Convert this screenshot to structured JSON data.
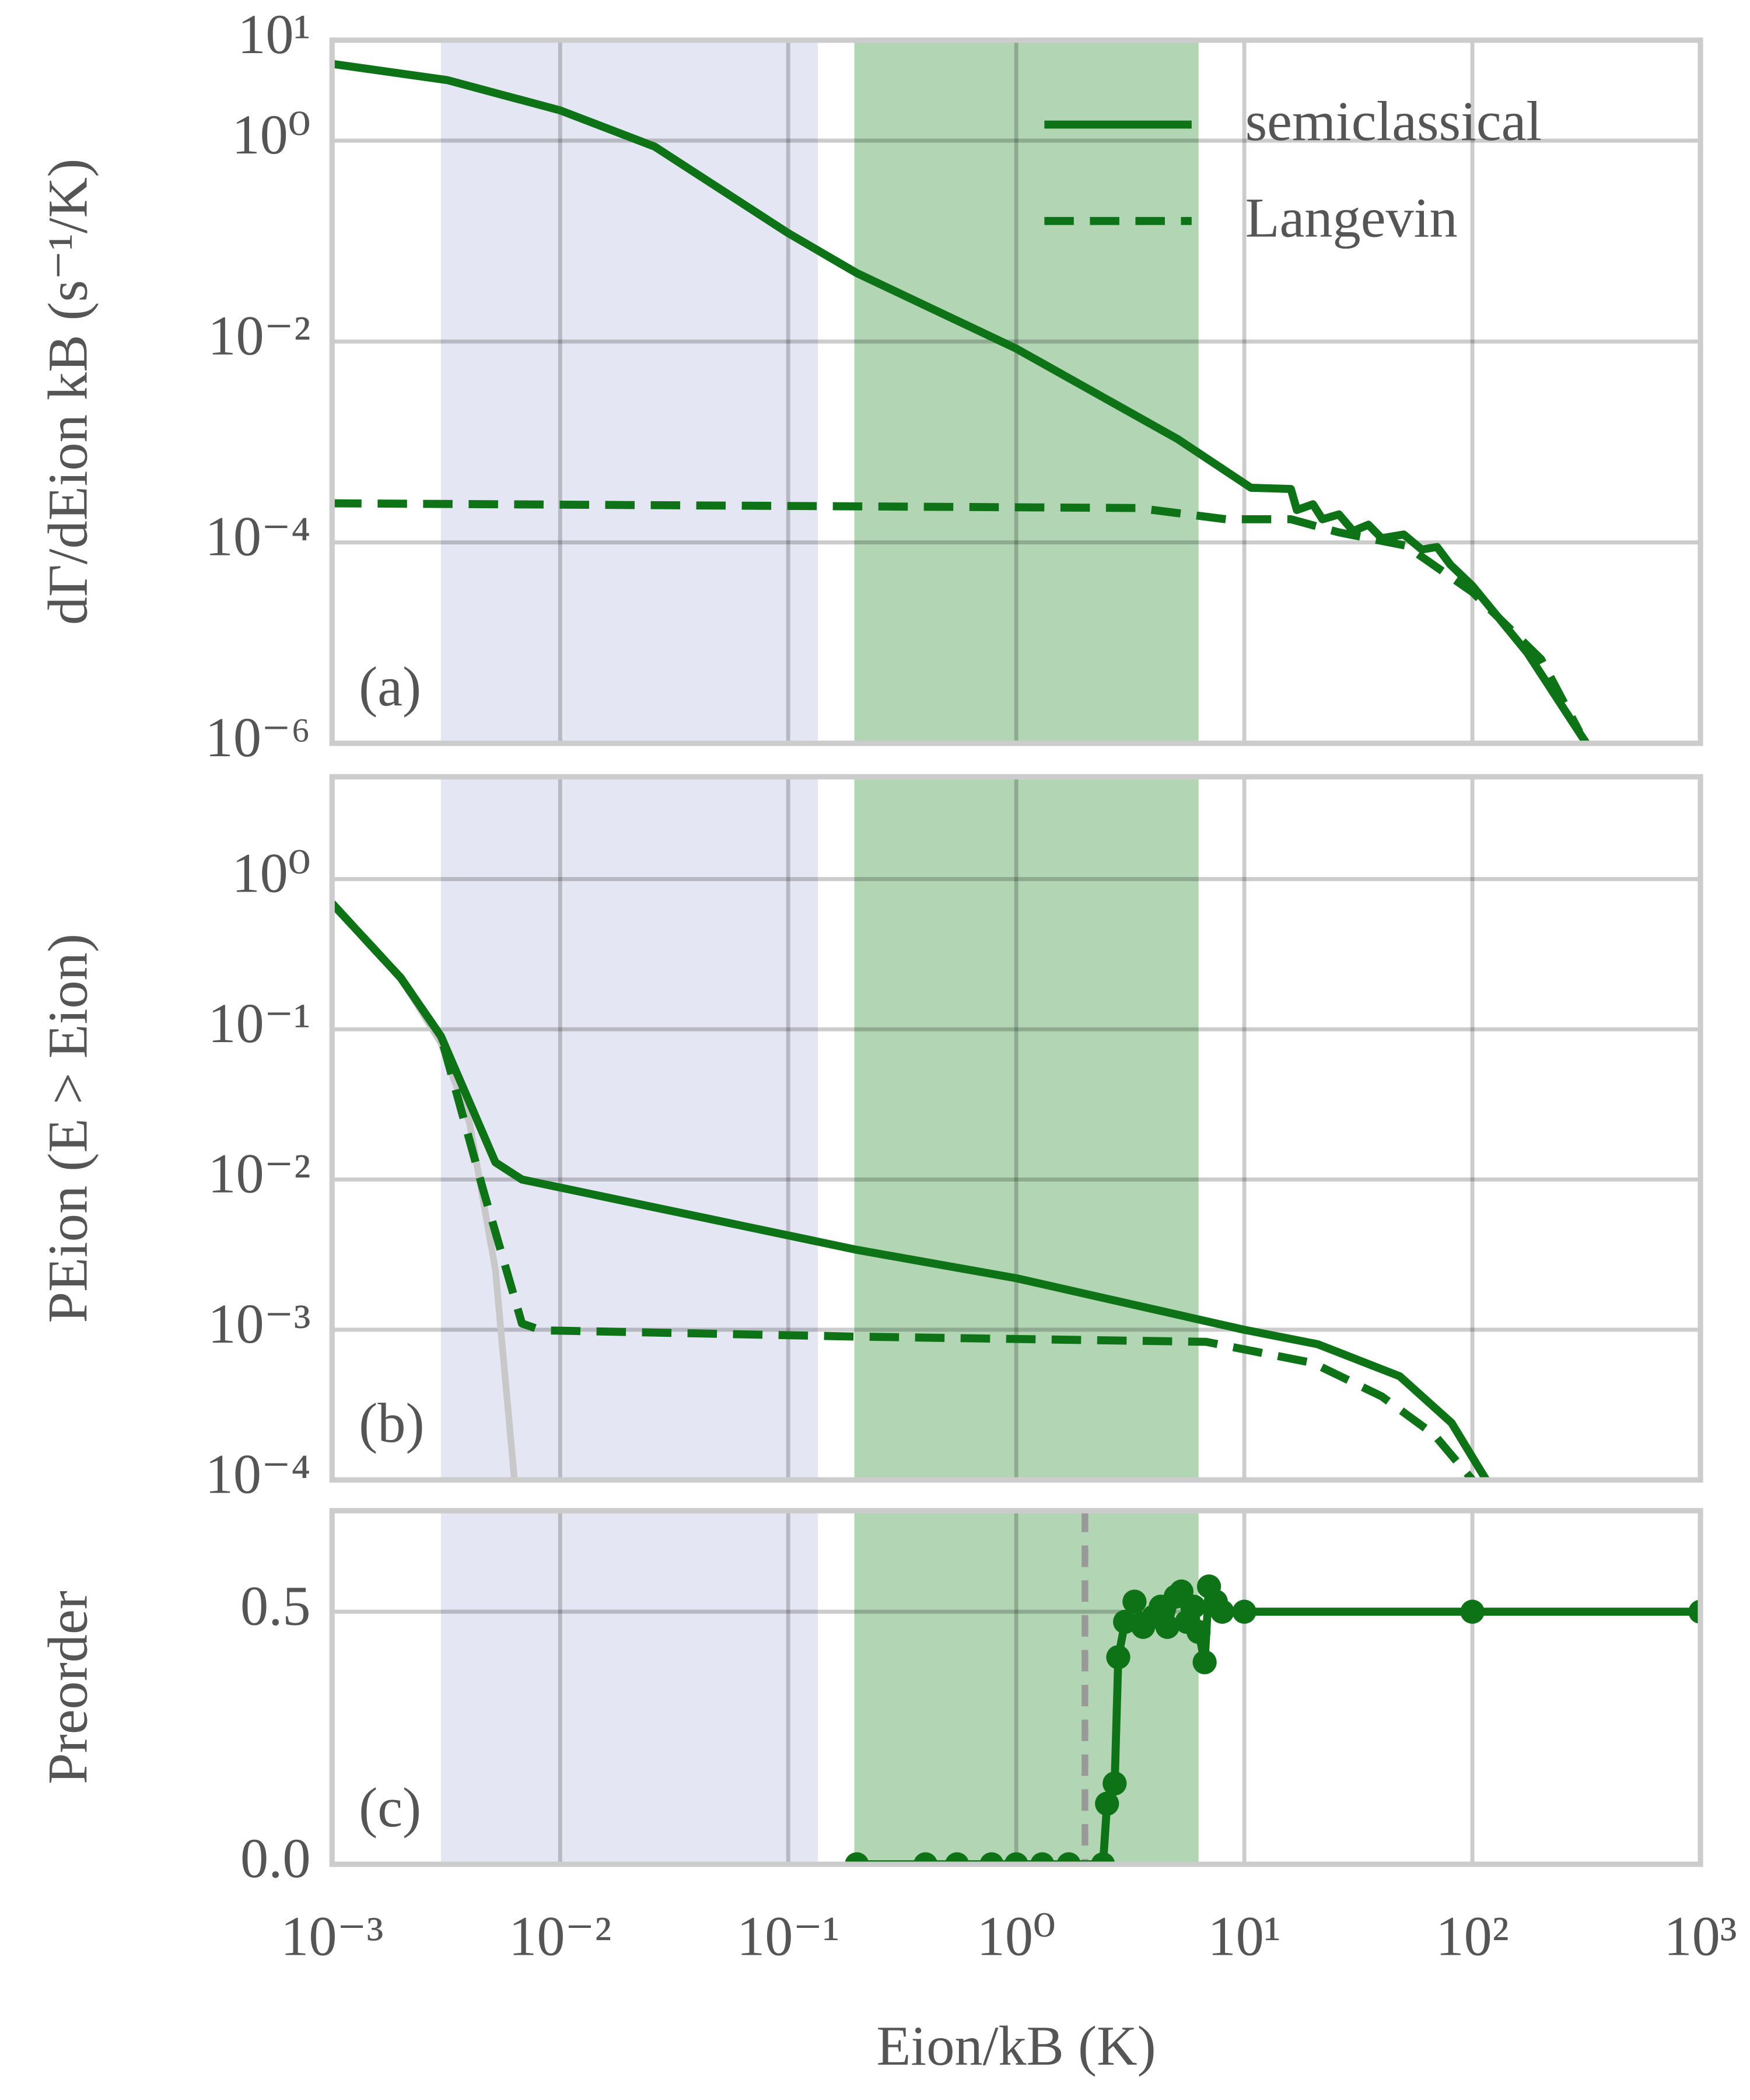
{
  "chart_data": [
    {
      "type": "line",
      "xlog": true,
      "ylog": true,
      "grid": true,
      "legend": "upper right",
      "ylabel": "dΓ/dEion kB (s⁻¹/K)",
      "panel_label": "(a)",
      "xlim": [
        0.001,
        1000
      ],
      "xticks": [
        0.001,
        0.01,
        0.1,
        1,
        10,
        100,
        1000
      ],
      "ylim": [
        1e-06,
        10
      ],
      "yticks": [
        {
          "value": 10,
          "label": "10¹"
        },
        {
          "value": 1,
          "label": "10⁰"
        },
        {
          "value": 0.01,
          "label": "10⁻²"
        },
        {
          "value": 0.0001,
          "label": "10⁻⁴"
        },
        {
          "value": 1e-06,
          "label": "10⁻⁶"
        }
      ],
      "spans": [
        {
          "x": [
            0.003,
            0.135
          ],
          "color": "#e5e6f3"
        },
        {
          "x": [
            0.195,
            6.3
          ],
          "color": "#b2d5b3"
        }
      ],
      "series": [
        {
          "name": "semiclassical",
          "color": "#0e7317",
          "style": "solid",
          "x": [
            0.001,
            0.0032,
            0.01,
            0.026,
            0.1,
            0.2,
            1,
            5.1,
            10.7,
            16,
            17,
            20,
            22,
            26,
            30,
            35,
            40,
            50,
            60,
            70,
            80,
            100,
            174,
            316
          ],
          "values": [
            5.8,
            4.0,
            2.0,
            0.87,
            0.12,
            0.048,
            0.0085,
            0.00107,
            0.00035,
            0.00034,
            0.00021,
            0.00024,
            0.00017,
            0.00019,
            0.00013,
            0.00015,
            0.00011,
            0.00012,
            8.5e-05,
            9e-05,
            6e-05,
            3.7e-05,
            8e-06,
            1e-06
          ]
        },
        {
          "name": "Langevin",
          "color": "#0e7317",
          "style": "dashed",
          "x": [
            0.001,
            3.4,
            8.3,
            16,
            26,
            51,
            100,
            200,
            295
          ],
          "values": [
            0.000245,
            0.00022,
            0.00017,
            0.00017,
            0.000126,
            9.3e-05,
            3.2e-05,
            6.9e-06,
            1.3e-06
          ]
        }
      ]
    },
    {
      "type": "line",
      "xlog": true,
      "ylog": true,
      "grid": true,
      "ylabel": "PEion (E > Eion)",
      "panel_label": "(b)",
      "xlim": [
        0.001,
        1000
      ],
      "xticks": [
        0.001,
        0.01,
        0.1,
        1,
        10,
        100,
        1000
      ],
      "ylim": [
        0.0001,
        4.8
      ],
      "yticks": [
        {
          "value": 1,
          "label": "10⁰"
        },
        {
          "value": 0.1,
          "label": "10⁻¹"
        },
        {
          "value": 0.01,
          "label": "10⁻²"
        },
        {
          "value": 0.001,
          "label": "10⁻³"
        },
        {
          "value": 0.0001,
          "label": "10⁻⁴"
        }
      ],
      "spans": [
        {
          "x": [
            0.003,
            0.135
          ],
          "color": "#e5e6f3"
        },
        {
          "x": [
            0.195,
            6.3
          ],
          "color": "#b2d5b3"
        }
      ],
      "series": [
        {
          "color": "#c8c8c8",
          "style": "solid",
          "x": [
            0.001,
            0.002,
            0.003,
            0.004,
            0.0052,
            0.0063
          ],
          "values": [
            0.69,
            0.22,
            0.081,
            0.024,
            0.0025,
            0.0001
          ]
        },
        {
          "name": "semiclassical",
          "color": "#0e7317",
          "style": "solid",
          "x": [
            0.001,
            0.002,
            0.003,
            0.0052,
            0.0068,
            0.2,
            1,
            10,
            21,
            48,
            81,
            115
          ],
          "values": [
            0.69,
            0.22,
            0.09,
            0.013,
            0.01,
            0.0034,
            0.0022,
            0.001,
            0.0008,
            0.00049,
            0.00024,
            0.0001
          ]
        },
        {
          "name": "Langevin",
          "color": "#0e7317",
          "style": "dashed",
          "x": [
            0.001,
            0.002,
            0.003,
            0.0046,
            0.0068,
            0.0083,
            0.2,
            6.8,
            20,
            40,
            68,
            100
          ],
          "values": [
            0.69,
            0.22,
            0.09,
            0.0085,
            0.0011,
            0.00099,
            0.0009,
            0.00083,
            0.0006,
            0.00036,
            0.0002,
            0.0001
          ]
        }
      ]
    },
    {
      "type": "line",
      "xlog": true,
      "ylog": false,
      "grid": true,
      "marker": "o",
      "ylabel": "Preorder",
      "panel_label": "(c)",
      "xlabel": "Eion/kB (K)",
      "xlim": [
        0.001,
        1000
      ],
      "xticks": [
        {
          "value": 0.001,
          "label": "10⁻³"
        },
        {
          "value": 0.01,
          "label": "10⁻²"
        },
        {
          "value": 0.1,
          "label": "10⁻¹"
        },
        {
          "value": 1,
          "label": "10⁰"
        },
        {
          "value": 10,
          "label": "10¹"
        },
        {
          "value": 100,
          "label": "10²"
        },
        {
          "value": 1000,
          "label": "10³"
        }
      ],
      "ylim": [
        0,
        0.7
      ],
      "yticks": [
        {
          "value": 0,
          "label": "0.0"
        },
        0.5
      ],
      "spans": [
        {
          "x": [
            0.003,
            0.135
          ],
          "color": "#e5e6f3"
        },
        {
          "x": [
            0.195,
            6.3
          ],
          "color": "#b2d5b3"
        }
      ],
      "vline": {
        "x": 2.0,
        "color": "#999999"
      },
      "series": [
        {
          "color": "#0e7317",
          "style": "solid",
          "x": [
            0.2,
            0.4,
            0.55,
            0.78,
            1,
            1.3,
            1.7,
            2.4,
            2.5,
            2.7,
            2.8,
            3.0,
            3.3,
            3.6,
            4.0,
            4.3,
            4.6,
            5.0,
            5.3,
            5.6,
            6.0,
            6.3,
            6.7,
            7.0,
            7.5,
            8.0,
            10,
            100,
            1000
          ],
          "values": [
            0,
            0,
            0,
            0,
            0,
            0,
            0,
            0,
            0.12,
            0.16,
            0.41,
            0.48,
            0.52,
            0.47,
            0.49,
            0.51,
            0.47,
            0.53,
            0.54,
            0.48,
            0.51,
            0.46,
            0.4,
            0.55,
            0.52,
            0.5,
            0.5,
            0.5,
            0.5
          ]
        },
        {
          "color": "#0e7317",
          "style": "thin",
          "x": [
            0.001,
            0.2
          ],
          "values": [
            0,
            0
          ]
        }
      ]
    }
  ]
}
